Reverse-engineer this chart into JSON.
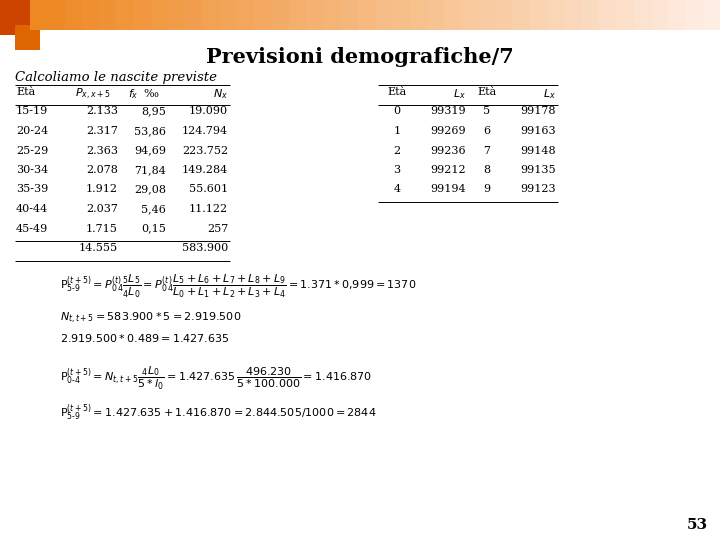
{
  "title": "Previsioni demografiche/7",
  "subtitle": "Calcoliamo le nascite previste",
  "page_number": "53",
  "bg_color": "#ffffff",
  "table1_headers": [
    "Età",
    "P_{x,x+5}",
    "f_x ‰",
    "N_x"
  ],
  "table1_rows": [
    [
      "15-19",
      "2.133",
      "8,95",
      "19.090"
    ],
    [
      "20-24",
      "2.317",
      "53,86",
      "124.794"
    ],
    [
      "25-29",
      "2.363",
      "94,69",
      "223.752"
    ],
    [
      "30-34",
      "2.078",
      "71,84",
      "149.284"
    ],
    [
      "35-39",
      "1.912",
      "29,08",
      "55.601"
    ],
    [
      "40-44",
      "2.037",
      "5,46",
      "11.122"
    ],
    [
      "45-49",
      "1.715",
      "0,15",
      "257"
    ]
  ],
  "table1_totals": [
    "",
    "14.555",
    "",
    "583.900"
  ],
  "table2_headers": [
    "Età",
    "L_x",
    "Età",
    "L_x"
  ],
  "table2_rows": [
    [
      "0",
      "99319",
      "5",
      "99178"
    ],
    [
      "1",
      "99269",
      "6",
      "99163"
    ],
    [
      "2",
      "99236",
      "7",
      "99148"
    ],
    [
      "3",
      "99212",
      "8",
      "99135"
    ],
    [
      "4",
      "99194",
      "9",
      "99123"
    ]
  ]
}
